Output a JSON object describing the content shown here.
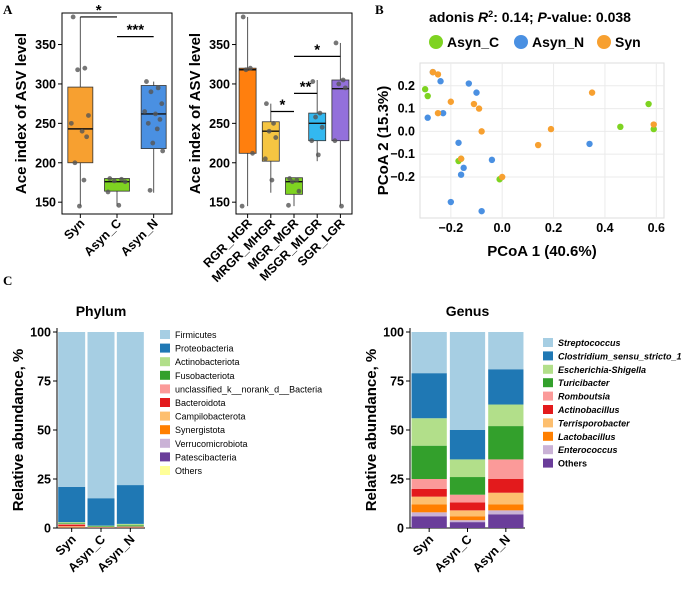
{
  "panel_labels": {
    "a": "A",
    "b": "B",
    "c": "C"
  },
  "colors": {
    "Syn": "#F7A030",
    "Asyn_C": "#7ED321",
    "Asyn_N": "#4A90E2",
    "RGR_HGR": "#FF7F0E",
    "MRGR_MHGR": "#F5C542",
    "MGR_MGR": "#7ED321",
    "MSGR_MLGR": "#33B8F0",
    "SGR_LGR": "#9370DB"
  },
  "chart_data": [
    {
      "id": "boxplot-a1",
      "type": "boxplot",
      "ylabel": "Ace index of ASV level",
      "ylim": [
        135,
        390
      ],
      "yticks": [
        150,
        200,
        250,
        300,
        350
      ],
      "categories": [
        "Syn",
        "Asyn_C",
        "Asyn_N"
      ],
      "boxes": [
        {
          "name": "Syn",
          "min": 145,
          "q1": 200,
          "median": 243,
          "q3": 296,
          "max": 385
        },
        {
          "name": "Asyn_C",
          "min": 145,
          "q1": 164,
          "median": 176,
          "q3": 180,
          "max": 180
        },
        {
          "name": "Asyn_N",
          "min": 162,
          "q1": 218,
          "median": 262,
          "q3": 298,
          "max": 303
        }
      ],
      "points": [
        {
          "g": 0,
          "v": [
            385,
            320,
            318,
            260,
            250,
            240,
            233,
            200,
            178,
            145
          ]
        },
        {
          "g": 1,
          "v": [
            180,
            179,
            177,
            176,
            163,
            146
          ]
        },
        {
          "g": 2,
          "v": [
            303,
            295,
            290,
            275,
            265,
            262,
            255,
            250,
            243,
            225,
            215,
            165
          ]
        }
      ],
      "significance": [
        {
          "from": 0,
          "to": 1,
          "label": "*",
          "y": 385
        },
        {
          "from": 1,
          "to": 2,
          "label": "***",
          "y": 360
        }
      ]
    },
    {
      "id": "boxplot-a2",
      "type": "boxplot",
      "ylabel": "Ace index of ASV level",
      "ylim": [
        135,
        390
      ],
      "yticks": [
        150,
        200,
        250,
        300,
        350
      ],
      "categories": [
        "RGR_HGR",
        "MRGR_MHGR",
        "MGR_MGR",
        "MSGR_MLGR",
        "SGR_LGR"
      ],
      "boxes": [
        {
          "name": "RGR_HGR",
          "min": 145,
          "q1": 212,
          "median": 318,
          "q3": 320,
          "max": 385
        },
        {
          "name": "MRGR_MHGR",
          "min": 162,
          "q1": 202,
          "median": 240,
          "q3": 252,
          "max": 275
        },
        {
          "name": "MGR_MGR",
          "min": 145,
          "q1": 160,
          "median": 176,
          "q3": 181,
          "max": 181
        },
        {
          "name": "MSGR_MLGR",
          "min": 202,
          "q1": 228,
          "median": 250,
          "q3": 263,
          "max": 305
        },
        {
          "name": "SGR_LGR",
          "min": 145,
          "q1": 228,
          "median": 294,
          "q3": 305,
          "max": 352
        }
      ],
      "points": [
        {
          "g": 0,
          "v": [
            385,
            320,
            318,
            212,
            145
          ]
        },
        {
          "g": 1,
          "v": [
            275,
            250,
            240,
            232,
            205,
            178
          ]
        },
        {
          "g": 2,
          "v": [
            180,
            178,
            176,
            164,
            146
          ]
        },
        {
          "g": 3,
          "v": [
            303,
            263,
            258,
            245,
            228,
            210
          ]
        },
        {
          "g": 4,
          "v": [
            352,
            305,
            300,
            295,
            228,
            145
          ]
        }
      ],
      "significance": [
        {
          "from": 2,
          "to": 3,
          "label": "**",
          "y": 288
        },
        {
          "from": 1,
          "to": 2,
          "label": "*",
          "y": 265
        },
        {
          "from": 2,
          "to": 4,
          "label": "*",
          "y": 335
        }
      ]
    },
    {
      "id": "pcoa-b",
      "type": "scatter",
      "title": "adonis R²: 0.14; P-value: 0.038",
      "title_parts": {
        "prefix": "adonis ",
        "r": "R",
        "sup": "2",
        "mid": ": 0.14; ",
        "p": "P",
        "suffix": "-value: 0.038"
      },
      "xlabel": "PCoA 1 (40.6%)",
      "ylabel": "PCoA 2 (15.3%)",
      "xlim": [
        -0.32,
        0.63
      ],
      "ylim": [
        -0.38,
        0.3
      ],
      "xticks": [
        -0.2,
        0,
        0.2,
        0.4,
        0.6
      ],
      "xtick_labels": [
        "−0.2",
        "0.0",
        "0.2",
        "0.4",
        "0.6"
      ],
      "yticks": [
        -0.2,
        -0.1,
        0,
        0.1,
        0.2
      ],
      "ytick_labels": [
        "−0.2",
        "−0.1",
        "0.0",
        "0.1",
        "0.2"
      ],
      "legend": [
        "Asyn_C",
        "Asyn_N",
        "Syn"
      ],
      "series": [
        {
          "name": "Asyn_C",
          "x": [
            -0.3,
            -0.29,
            -0.17,
            -0.16,
            -0.01,
            0.46,
            0.57,
            0.59
          ],
          "y": [
            0.185,
            0.155,
            -0.13,
            -0.12,
            -0.21,
            0.02,
            0.12,
            0.01
          ]
        },
        {
          "name": "Asyn_N",
          "x": [
            -0.29,
            -0.27,
            -0.24,
            -0.23,
            -0.2,
            -0.17,
            -0.16,
            -0.15,
            -0.13,
            -0.1,
            -0.08,
            -0.04,
            0.34
          ],
          "y": [
            0.06,
            0.26,
            0.22,
            0.08,
            -0.31,
            -0.05,
            -0.19,
            -0.16,
            0.21,
            0.17,
            -0.35,
            -0.125,
            -0.055
          ]
        },
        {
          "name": "Syn",
          "x": [
            -0.27,
            -0.25,
            -0.25,
            -0.2,
            -0.16,
            -0.11,
            -0.09,
            -0.08,
            0.0,
            0.14,
            0.19,
            0.35,
            0.59
          ],
          "y": [
            0.26,
            0.25,
            0.08,
            0.13,
            -0.12,
            0.12,
            0.1,
            0.0,
            -0.2,
            -0.06,
            0.01,
            0.17,
            0.03
          ]
        }
      ]
    },
    {
      "id": "stacked-phylum",
      "type": "bar",
      "stacked": true,
      "title": "Phylum",
      "ylabel": "Relative abundance, %",
      "ylim": [
        0,
        100
      ],
      "yticks": [
        0,
        25,
        50,
        75,
        100
      ],
      "categories": [
        "Syn",
        "Asyn_C",
        "Asyn_N"
      ],
      "series": [
        {
          "name": "Firmicutes",
          "color": "#A6CEE3",
          "values": [
            79.0,
            84.8,
            78.1
          ]
        },
        {
          "name": "Proteobacteria",
          "color": "#1F78B4",
          "values": [
            18.0,
            14.0,
            19.8
          ]
        },
        {
          "name": "Actinobacteriota",
          "color": "#B2DF8A",
          "values": [
            0.6,
            0.4,
            0.7
          ]
        },
        {
          "name": "Fusobacteriota",
          "color": "#33A02C",
          "values": [
            0.4,
            0.3,
            0.6
          ]
        },
        {
          "name": "unclassified_k__norank_d__Bacteria",
          "color": "#FB9A99",
          "values": [
            0.3,
            0.1,
            0.2
          ]
        },
        {
          "name": "Bacteroidota",
          "color": "#E31A1C",
          "values": [
            0.8,
            0.1,
            0.2
          ]
        },
        {
          "name": "Campilobacterota",
          "color": "#FDBF6F",
          "values": [
            0.3,
            0.1,
            0.1
          ]
        },
        {
          "name": "Synergistota",
          "color": "#FF7F00",
          "values": [
            0.3,
            0.05,
            0.1
          ]
        },
        {
          "name": "Verrucomicrobiota",
          "color": "#CAB2D6",
          "values": [
            0.1,
            0.05,
            0.1
          ]
        },
        {
          "name": "Patescibacteria",
          "color": "#6A3D9A",
          "values": [
            0.1,
            0.05,
            0.05
          ]
        },
        {
          "name": "Others",
          "color": "#FFFF99",
          "values": [
            0.1,
            0.05,
            0.05
          ]
        }
      ]
    },
    {
      "id": "stacked-genus",
      "type": "bar",
      "stacked": true,
      "title": "Genus",
      "ylabel": "Relative abundance, %",
      "ylim": [
        0,
        100
      ],
      "yticks": [
        0,
        25,
        50,
        75,
        100
      ],
      "categories": [
        "Syn",
        "Asyn_C",
        "Asyn_N"
      ],
      "series": [
        {
          "name": "Others",
          "color": "#6A3D9A",
          "values": [
            6,
            3,
            7
          ]
        },
        {
          "name": "Enterococcus",
          "color": "#CAB2D6",
          "values": [
            2,
            1,
            2
          ]
        },
        {
          "name": "Lactobacillus",
          "color": "#FF7F00",
          "values": [
            4,
            2,
            3
          ]
        },
        {
          "name": "Terrisporobacter",
          "color": "#FDBF6F",
          "values": [
            4,
            3,
            6
          ]
        },
        {
          "name": "Actinobacillus",
          "color": "#E31A1C",
          "values": [
            4,
            4,
            7
          ]
        },
        {
          "name": "Romboutsia",
          "color": "#FB9A99",
          "values": [
            5,
            4,
            10
          ]
        },
        {
          "name": "Turicibacter",
          "color": "#33A02C",
          "values": [
            17,
            9,
            17
          ]
        },
        {
          "name": "Escherichia-Shigella",
          "color": "#B2DF8A",
          "values": [
            14,
            9,
            11
          ]
        },
        {
          "name": "Clostridium_sensu_stricto_1",
          "color": "#1F78B4",
          "values": [
            23,
            15,
            18
          ]
        },
        {
          "name": "Streptococcus",
          "color": "#A6CEE3",
          "values": [
            21,
            50,
            19
          ]
        }
      ],
      "legend_order": [
        "Streptococcus",
        "Clostridium_sensu_stricto_1",
        "Escherichia-Shigella",
        "Turicibacter",
        "Romboutsia",
        "Actinobacillus",
        "Terrisporobacter",
        "Lactobacillus",
        "Enterococcus",
        "Others"
      ],
      "legend_italic_except": [
        "Others"
      ]
    }
  ]
}
